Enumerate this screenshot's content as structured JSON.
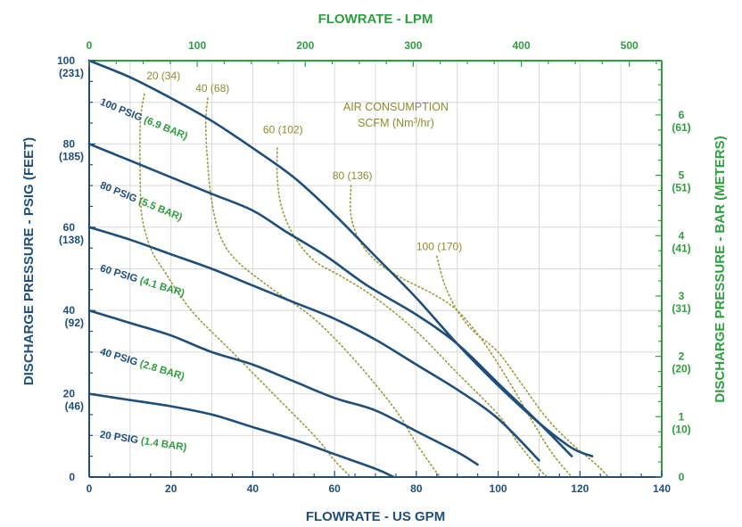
{
  "colors": {
    "primary_blue": "#1f4e79",
    "secondary_green": "#2e9e3e",
    "air_olive": "#9a9a3a",
    "grid": "#d9d9d9"
  },
  "chart_data": {
    "type": "line",
    "title": "",
    "xlabel": "FLOWRATE - US GPM",
    "x2label": "FLOWRATE - LPM",
    "ylabel": "DISCHARGE PRESSURE - PSIG (FEET)",
    "y2label": "DISCHARGE PRESSURE - BAR (METERS)",
    "xlim": [
      0,
      140
    ],
    "ylim": [
      0,
      100
    ],
    "x2lim": [
      0,
      530
    ],
    "y2lim": [
      0,
      6.9
    ],
    "grid": true,
    "x_ticks": [
      "0",
      "20",
      "40",
      "60",
      "80",
      "100",
      "120",
      "140"
    ],
    "x_tick_values": [
      0,
      20,
      40,
      60,
      80,
      100,
      120,
      140
    ],
    "x2_ticks": [
      "0",
      "100",
      "200",
      "300",
      "400",
      "500"
    ],
    "x2_tick_values": [
      0,
      100,
      200,
      300,
      400,
      500
    ],
    "y_ticks": [
      {
        "value": 0,
        "main": "0",
        "sub": ""
      },
      {
        "value": 20,
        "main": "20",
        "sub": "(46)"
      },
      {
        "value": 40,
        "main": "40",
        "sub": "(92)"
      },
      {
        "value": 60,
        "main": "60",
        "sub": "(138)"
      },
      {
        "value": 80,
        "main": "80",
        "sub": "(185)"
      },
      {
        "value": 100,
        "main": "100",
        "sub": "(231)"
      }
    ],
    "y2_ticks": [
      {
        "value": 0,
        "main": "0",
        "sub": ""
      },
      {
        "value": 1,
        "main": "1",
        "sub": "(10)"
      },
      {
        "value": 2,
        "main": "2",
        "sub": "(20)"
      },
      {
        "value": 3,
        "main": "3",
        "sub": "(31)"
      },
      {
        "value": 4,
        "main": "4",
        "sub": "(41)"
      },
      {
        "value": 5,
        "main": "5",
        "sub": "(51)"
      },
      {
        "value": 6,
        "main": "6",
        "sub": "(61)"
      }
    ],
    "series": [
      {
        "name": "100 PSIG",
        "name_metric": "(6.9 BAR)",
        "label_anchor": [
          2.5,
          89.5
        ],
        "points": [
          [
            0,
            100
          ],
          [
            10,
            96
          ],
          [
            20,
            91
          ],
          [
            30,
            85.5
          ],
          [
            40,
            79
          ],
          [
            50,
            72
          ],
          [
            60,
            63
          ],
          [
            70,
            53
          ],
          [
            80,
            43
          ],
          [
            90,
            32
          ],
          [
            100,
            22
          ],
          [
            110,
            13
          ],
          [
            118,
            7
          ],
          [
            123,
            5
          ]
        ]
      },
      {
        "name": "80 PSIG",
        "name_metric": "(5.5 BAR)",
        "label_anchor": [
          2.5,
          69.5
        ],
        "points": [
          [
            0,
            80
          ],
          [
            10,
            76
          ],
          [
            20,
            72
          ],
          [
            30,
            68
          ],
          [
            40,
            64
          ],
          [
            48,
            59
          ],
          [
            58,
            53
          ],
          [
            68,
            46
          ],
          [
            80,
            39
          ],
          [
            90,
            32
          ],
          [
            100,
            22.5
          ],
          [
            110,
            13
          ],
          [
            118,
            5
          ]
        ]
      },
      {
        "name": "60 PSIG",
        "name_metric": "(4.1 BAR)",
        "label_anchor": [
          2.5,
          49.5
        ],
        "points": [
          [
            0,
            60
          ],
          [
            10,
            57
          ],
          [
            20,
            53.5
          ],
          [
            30,
            50
          ],
          [
            40,
            46
          ],
          [
            50,
            42
          ],
          [
            60,
            38
          ],
          [
            70,
            33
          ],
          [
            80,
            27
          ],
          [
            90,
            21
          ],
          [
            100,
            14
          ],
          [
            110,
            4
          ]
        ]
      },
      {
        "name": "40 PSIG",
        "name_metric": "(2.8 BAR)",
        "label_anchor": [
          2.5,
          29.5
        ],
        "points": [
          [
            0,
            40
          ],
          [
            10,
            37
          ],
          [
            20,
            34
          ],
          [
            30,
            30
          ],
          [
            40,
            27
          ],
          [
            50,
            23
          ],
          [
            60,
            19
          ],
          [
            70,
            16
          ],
          [
            80,
            11
          ],
          [
            90,
            6
          ],
          [
            95,
            3
          ]
        ]
      },
      {
        "name": "20 PSIG",
        "name_metric": "(1.4 BAR)",
        "label_anchor": [
          2.5,
          9.5
        ],
        "points": [
          [
            0,
            20
          ],
          [
            10,
            18.5
          ],
          [
            20,
            17
          ],
          [
            30,
            15
          ],
          [
            40,
            12
          ],
          [
            50,
            9
          ],
          [
            60,
            5.5
          ],
          [
            70,
            2
          ],
          [
            74.5,
            0
          ]
        ]
      }
    ],
    "air_consumption": {
      "title_line1": "AIR CONSUMPTION",
      "title_line2": "SCFM (Nm",
      "title_sup": "3",
      "title_end": "/hr)",
      "title_anchor": [
        75,
        88
      ],
      "lines": [
        {
          "label": "20 (34)",
          "label_anchor": [
            14,
            95.5
          ],
          "points": [
            [
              13.5,
              92
            ],
            [
              12.5,
              85
            ],
            [
              12.5,
              70
            ],
            [
              13,
              62
            ],
            [
              15,
              55
            ],
            [
              18,
              50
            ],
            [
              25,
              40
            ],
            [
              35,
              30
            ],
            [
              45,
              20
            ],
            [
              55,
              10
            ],
            [
              60,
              4
            ],
            [
              64,
              0
            ]
          ]
        },
        {
          "label": "40 (68)",
          "label_anchor": [
            26,
            92.5
          ],
          "points": [
            [
              29,
              91
            ],
            [
              28.5,
              85
            ],
            [
              29,
              75
            ],
            [
              30,
              66
            ],
            [
              32,
              58
            ],
            [
              36,
              52
            ],
            [
              45,
              45
            ],
            [
              55,
              38
            ],
            [
              65,
              28
            ],
            [
              75,
              16
            ],
            [
              80,
              8
            ],
            [
              85,
              1
            ],
            [
              86,
              0
            ]
          ]
        },
        {
          "label": "60 (102)",
          "label_anchor": [
            42.5,
            82.5
          ],
          "points": [
            [
              46,
              79
            ],
            [
              46,
              72
            ],
            [
              47,
              65
            ],
            [
              50,
              58
            ],
            [
              55,
              52
            ],
            [
              62,
              48
            ],
            [
              70,
              43
            ],
            [
              80,
              35
            ],
            [
              90,
              25
            ],
            [
              100,
              15
            ],
            [
              105,
              8
            ],
            [
              110,
              2
            ],
            [
              112,
              0
            ]
          ]
        },
        {
          "label": "80 (136)",
          "label_anchor": [
            59.5,
            71.5
          ],
          "points": [
            [
              64,
              70
            ],
            [
              64,
              63
            ],
            [
              66,
              57
            ],
            [
              70,
              52
            ],
            [
              76,
              48
            ],
            [
              84,
              44
            ],
            [
              90,
              40
            ],
            [
              96,
              33
            ],
            [
              102,
              24
            ],
            [
              108,
              14
            ],
            [
              113,
              6
            ],
            [
              118,
              0
            ]
          ]
        },
        {
          "label": "100 (170)",
          "label_anchor": [
            80,
            54.5
          ],
          "points": [
            [
              85,
              53
            ],
            [
              87,
              46
            ],
            [
              90,
              40
            ],
            [
              94,
              35
            ],
            [
              100,
              30
            ],
            [
              106,
              22
            ],
            [
              112,
              14
            ],
            [
              118,
              8
            ],
            [
              124,
              3
            ],
            [
              127,
              0
            ]
          ]
        }
      ]
    }
  }
}
